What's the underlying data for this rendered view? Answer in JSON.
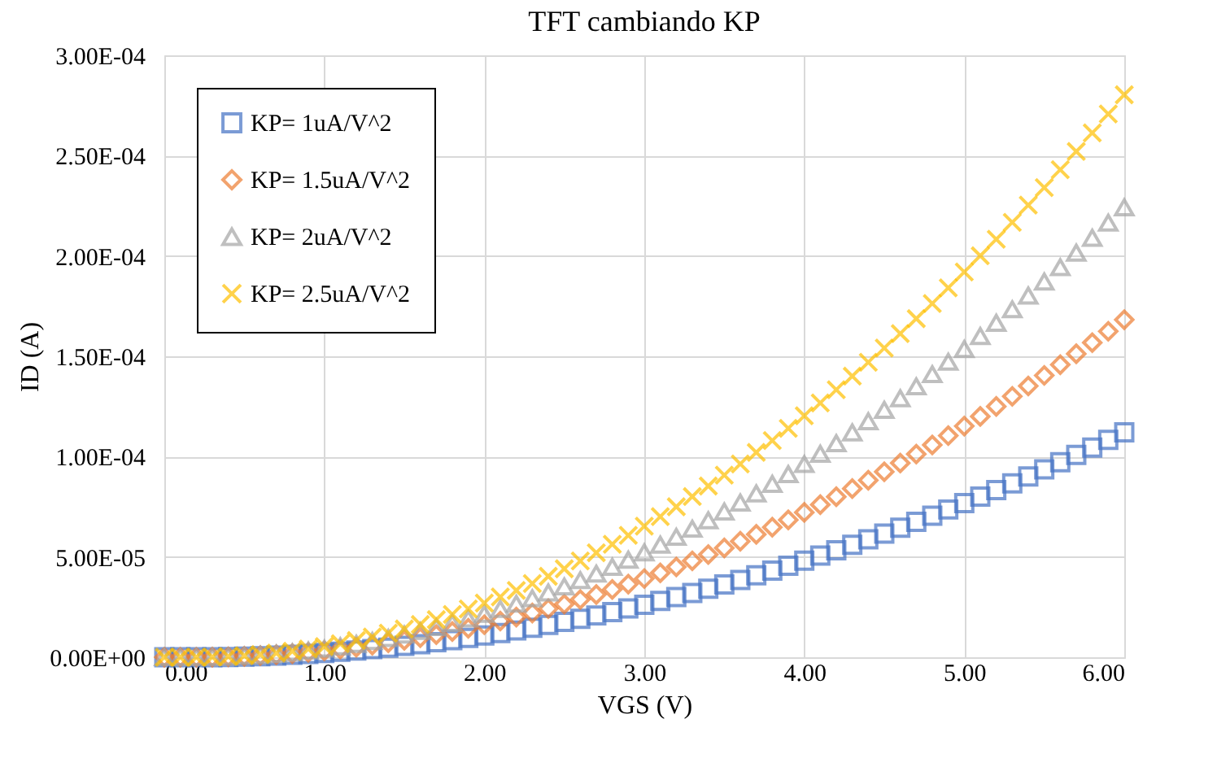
{
  "chart_data": {
    "type": "scatter",
    "title": "TFT cambiando KP",
    "xlabel": "VGS (V)",
    "ylabel": "ID (A)",
    "x": [
      0,
      0.1,
      0.2,
      0.3,
      0.4,
      0.5,
      0.6,
      0.7,
      0.8,
      0.9,
      1,
      1.1,
      1.2,
      1.3,
      1.4,
      1.5,
      1.6,
      1.7,
      1.8,
      1.9,
      2,
      2.1,
      2.2,
      2.3,
      2.4,
      2.5,
      2.6,
      2.7,
      2.8,
      2.9,
      3,
      3.1,
      3.2,
      3.3,
      3.4,
      3.5,
      3.6,
      3.7,
      3.8,
      3.9,
      4,
      4.1,
      4.2,
      4.3,
      4.4,
      4.5,
      4.6,
      4.7,
      4.8,
      4.9,
      5,
      5.1,
      5.2,
      5.3,
      5.4,
      5.5,
      5.6,
      5.7,
      5.8,
      5.9,
      6
    ],
    "series": [
      {
        "name": "KP= 1uA/V^2",
        "color": "#4472c4",
        "marker": "square",
        "values": [
          0,
          0,
          0,
          3.3e-08,
          1.3e-07,
          3e-07,
          5.3e-07,
          8.3e-07,
          1.2e-06,
          1.63e-06,
          2.13e-06,
          2.7e-06,
          3.33e-06,
          4.03e-06,
          4.8e-06,
          5.63e-06,
          6.53e-06,
          7.5e-06,
          8.53e-06,
          9.63e-06,
          1.08e-05,
          1.203e-05,
          1.333e-05,
          1.47e-05,
          1.613e-05,
          1.763e-05,
          1.92e-05,
          2.083e-05,
          2.253e-05,
          2.43e-05,
          2.613e-05,
          2.803e-05,
          3e-05,
          3.203e-05,
          3.413e-05,
          3.63e-05,
          3.853e-05,
          4.083e-05,
          4.32e-05,
          4.563e-05,
          4.813e-05,
          5.07e-05,
          5.333e-05,
          5.603e-05,
          5.88e-05,
          6.163e-05,
          6.453e-05,
          6.75e-05,
          7.053e-05,
          7.363e-05,
          7.68e-05,
          8.003e-05,
          8.333e-05,
          8.67e-05,
          9.013e-05,
          9.363e-05,
          9.72e-05,
          0.00010083,
          0.00010453,
          0.0001083,
          0.00011213
        ]
      },
      {
        "name": "KP= 1.5uA/V^2",
        "color": "#ed7d31",
        "marker": "diamond",
        "values": [
          0,
          0,
          0,
          5e-08,
          2e-07,
          4.5e-07,
          8e-07,
          1.25e-06,
          1.8e-06,
          2.45e-06,
          3.2e-06,
          4.05e-06,
          5e-06,
          6.05e-06,
          7.2e-06,
          8.45e-06,
          9.8e-06,
          1.125e-05,
          1.28e-05,
          1.445e-05,
          1.62e-05,
          1.805e-05,
          2e-05,
          2.205e-05,
          2.42e-05,
          2.645e-05,
          2.88e-05,
          3.125e-05,
          3.38e-05,
          3.645e-05,
          3.92e-05,
          4.205e-05,
          4.5e-05,
          4.805e-05,
          5.12e-05,
          5.445e-05,
          5.78e-05,
          6.125e-05,
          6.48e-05,
          6.845e-05,
          7.22e-05,
          7.605e-05,
          8e-05,
          8.405e-05,
          8.82e-05,
          9.245e-05,
          9.68e-05,
          0.00010125,
          0.0001058,
          0.00011045,
          0.0001152,
          0.00012005,
          0.000125,
          0.00013005,
          0.0001352,
          0.00014045,
          0.0001458,
          0.00015125,
          0.0001568,
          0.00016245,
          0.0001682
        ]
      },
      {
        "name": "KP= 2uA/V^2",
        "color": "#a5a5a5",
        "marker": "triangle",
        "values": [
          0,
          0,
          0,
          6.7e-08,
          2.7e-07,
          6e-07,
          1.07e-06,
          1.67e-06,
          2.4e-06,
          3.27e-06,
          4.27e-06,
          5.4e-06,
          6.67e-06,
          8.07e-06,
          9.6e-06,
          1.127e-05,
          1.307e-05,
          1.5e-05,
          1.707e-05,
          1.927e-05,
          2.16e-05,
          2.407e-05,
          2.667e-05,
          2.94e-05,
          3.227e-05,
          3.527e-05,
          3.84e-05,
          4.167e-05,
          4.507e-05,
          4.86e-05,
          5.227e-05,
          5.607e-05,
          6e-05,
          6.407e-05,
          6.827e-05,
          7.26e-05,
          7.707e-05,
          8.167e-05,
          8.64e-05,
          9.127e-05,
          9.627e-05,
          0.0001014,
          0.00010667,
          0.00011207,
          0.0001176,
          0.00012327,
          0.00012907,
          0.000135,
          0.00014107,
          0.00014727,
          0.0001536,
          0.00016007,
          0.00016667,
          0.0001734,
          0.00018027,
          0.00018727,
          0.0001944,
          0.00020167,
          0.00020907,
          0.0002166,
          0.00022427
        ]
      },
      {
        "name": "KP= 2.5uA/V^2",
        "color": "#ffc000",
        "marker": "cross",
        "values": [
          0,
          0,
          0,
          8.3e-08,
          3.3e-07,
          7.5e-07,
          1.33e-06,
          2.08e-06,
          3e-06,
          4.08e-06,
          5.33e-06,
          6.75e-06,
          8.33e-06,
          1.008e-05,
          1.2e-05,
          1.408e-05,
          1.633e-05,
          1.875e-05,
          2.133e-05,
          2.408e-05,
          2.7e-05,
          3.008e-05,
          3.333e-05,
          3.675e-05,
          4.033e-05,
          4.408e-05,
          4.8e-05,
          5.208e-05,
          5.633e-05,
          6.075e-05,
          6.533e-05,
          7.008e-05,
          7.5e-05,
          8.008e-05,
          8.533e-05,
          9.075e-05,
          9.633e-05,
          0.00010208,
          0.000108,
          0.00011408,
          0.00012033,
          0.00012675,
          0.00013333,
          0.00014008,
          0.000147,
          0.00015408,
          0.00016133,
          0.00016875,
          0.00017633,
          0.00018408,
          0.000192,
          0.00020008,
          0.00020833,
          0.00021675,
          0.00022533,
          0.00023408,
          0.000243,
          0.00025208,
          0.00026133,
          0.00027075,
          0.00028033
        ]
      }
    ],
    "xlim": [
      0,
      6
    ],
    "xticks": [
      {
        "value": 0,
        "label": "0.00"
      },
      {
        "value": 1,
        "label": "1.00"
      },
      {
        "value": 2,
        "label": "2.00"
      },
      {
        "value": 3,
        "label": "3.00"
      },
      {
        "value": 4,
        "label": "4.00"
      },
      {
        "value": 5,
        "label": "5.00"
      },
      {
        "value": 6,
        "label": "6.00"
      }
    ],
    "ylim": [
      0,
      0.0003
    ],
    "yticks": [
      {
        "value": 0,
        "label": "0.00E+00"
      },
      {
        "value": 5e-05,
        "label": "5.00E-05"
      },
      {
        "value": 0.0001,
        "label": "1.00E-04"
      },
      {
        "value": 0.00015,
        "label": "1.50E-04"
      },
      {
        "value": 0.0002,
        "label": "2.00E-04"
      },
      {
        "value": 0.00025,
        "label": "2.50E-04"
      },
      {
        "value": 0.0003,
        "label": "3.00E-04"
      }
    ],
    "grid": true,
    "legend": "top left"
  }
}
